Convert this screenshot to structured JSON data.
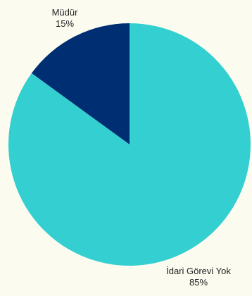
{
  "chart_data": {
    "type": "pie",
    "slices": [
      {
        "label": "Müdür",
        "percent_label": "15%",
        "value": 15,
        "color": "#002E73"
      },
      {
        "label": "İdari Görevi Yok",
        "percent_label": "85%",
        "value": 85,
        "color": "#34CFD0"
      }
    ],
    "start_angle_deg": 0,
    "direction": "counterclockwise",
    "background": "#FCFBF0"
  }
}
